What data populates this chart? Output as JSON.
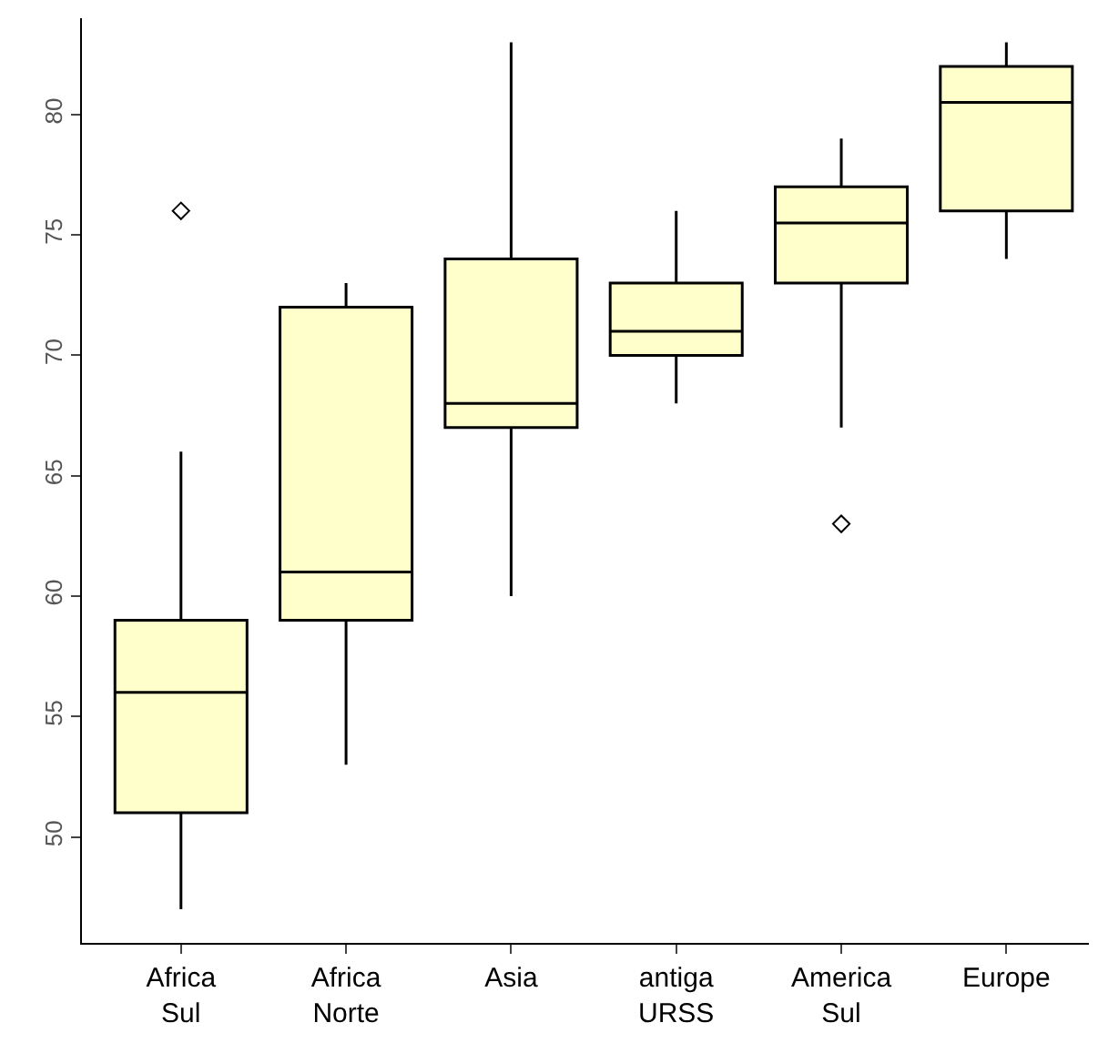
{
  "chart_data": {
    "type": "box",
    "categories": [
      "Africa Sul",
      "Africa Norte",
      "Asia",
      "antiga URSS",
      "America Sul",
      "Europe"
    ],
    "color": "#ffffcc",
    "boxes": [
      {
        "low": 47,
        "q1": 51,
        "median": 56,
        "q3": 59,
        "high": 66,
        "outliers": [
          76
        ]
      },
      {
        "low": 53,
        "q1": 59,
        "median": 61,
        "q3": 72,
        "high": 73
      },
      {
        "low": 60,
        "q1": 67,
        "median": 68,
        "q3": 74,
        "high": 83
      },
      {
        "low": 68,
        "q1": 70,
        "median": 71,
        "q3": 73,
        "high": 76
      },
      {
        "low": 67,
        "q1": 73,
        "median": 75.5,
        "q3": 77,
        "high": 79,
        "outliers": [
          63
        ]
      },
      {
        "low": 74,
        "q1": 76,
        "median": 80.5,
        "q3": 82,
        "high": 83
      }
    ],
    "ylim": [
      45.6,
      84
    ],
    "yticks": [
      50,
      55,
      60,
      65,
      70,
      75,
      80
    ],
    "marker": "diamond"
  }
}
